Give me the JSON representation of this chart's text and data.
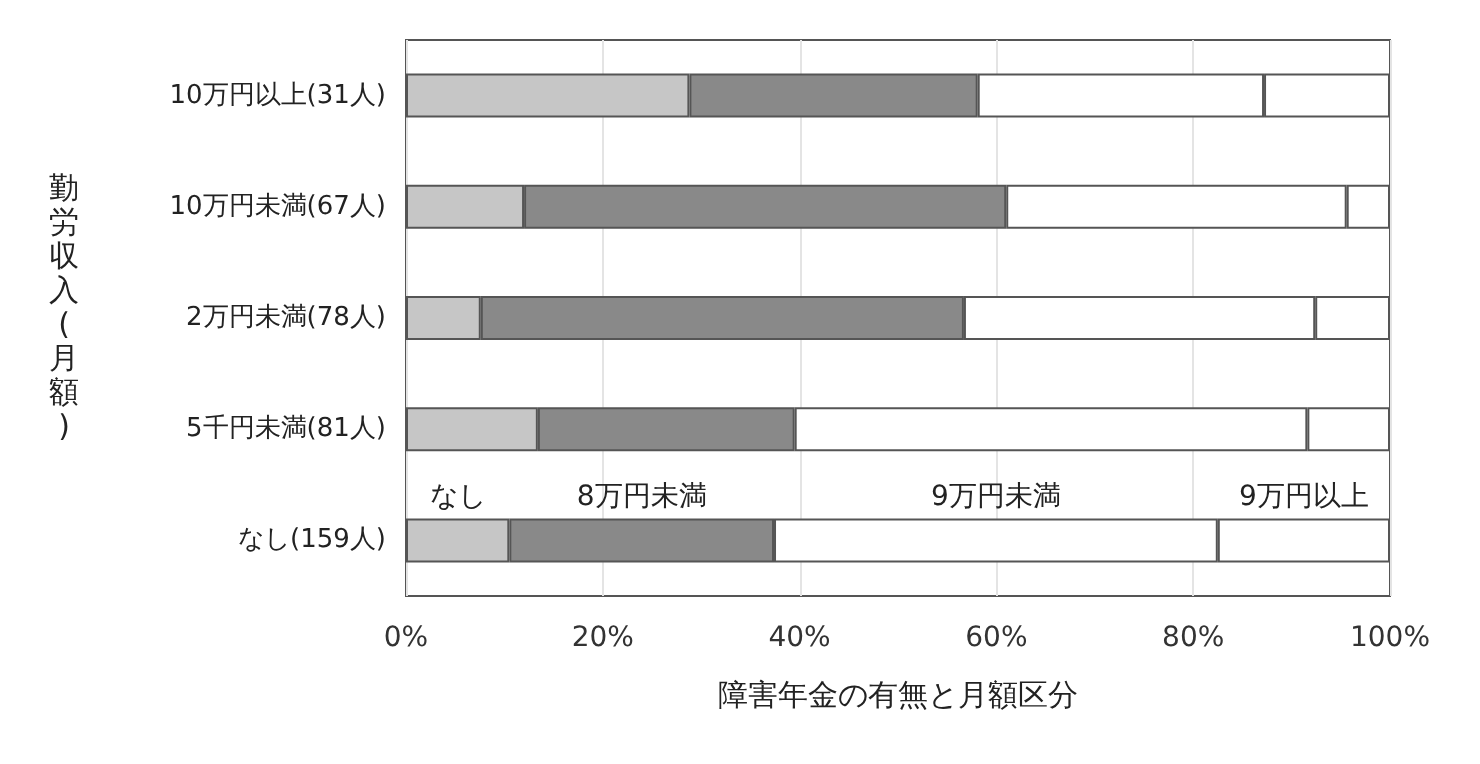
{
  "chart_data": {
    "type": "bar",
    "orientation": "horizontal",
    "stacked": true,
    "xlabel": "障害年金の有無と月額区分",
    "ylabel": "勤労収入(月額)",
    "categories": [
      "10万円以上(31人)",
      "10万円未満(67人)",
      "2万円未満(78人)",
      "5千円未満(81人)",
      "なし(159人)"
    ],
    "series": [
      {
        "name": "なし",
        "color": "#c6c6c6",
        "values": [
          28.8,
          12.0,
          7.6,
          13.4,
          10.5
        ]
      },
      {
        "name": "8万円未満",
        "color": "#898989",
        "values": [
          29.3,
          49.0,
          49.1,
          26.1,
          26.9
        ]
      },
      {
        "name": "9万円未満",
        "color": "#ffffff",
        "values": [
          29.1,
          34.6,
          35.7,
          52.1,
          45.1
        ]
      },
      {
        "name": "9万円以上",
        "color": "#ffffff",
        "values": [
          12.8,
          4.4,
          7.6,
          8.4,
          17.5
        ]
      }
    ],
    "xlim": [
      0,
      100
    ],
    "xticks": [
      {
        "value": 0,
        "label": "0%"
      },
      {
        "value": 20,
        "label": "20%"
      },
      {
        "value": 40,
        "label": "40%"
      },
      {
        "value": 60,
        "label": "60%"
      },
      {
        "value": 80,
        "label": "80%"
      },
      {
        "value": 100,
        "label": "100%"
      }
    ],
    "grid": "x",
    "legend": false
  }
}
